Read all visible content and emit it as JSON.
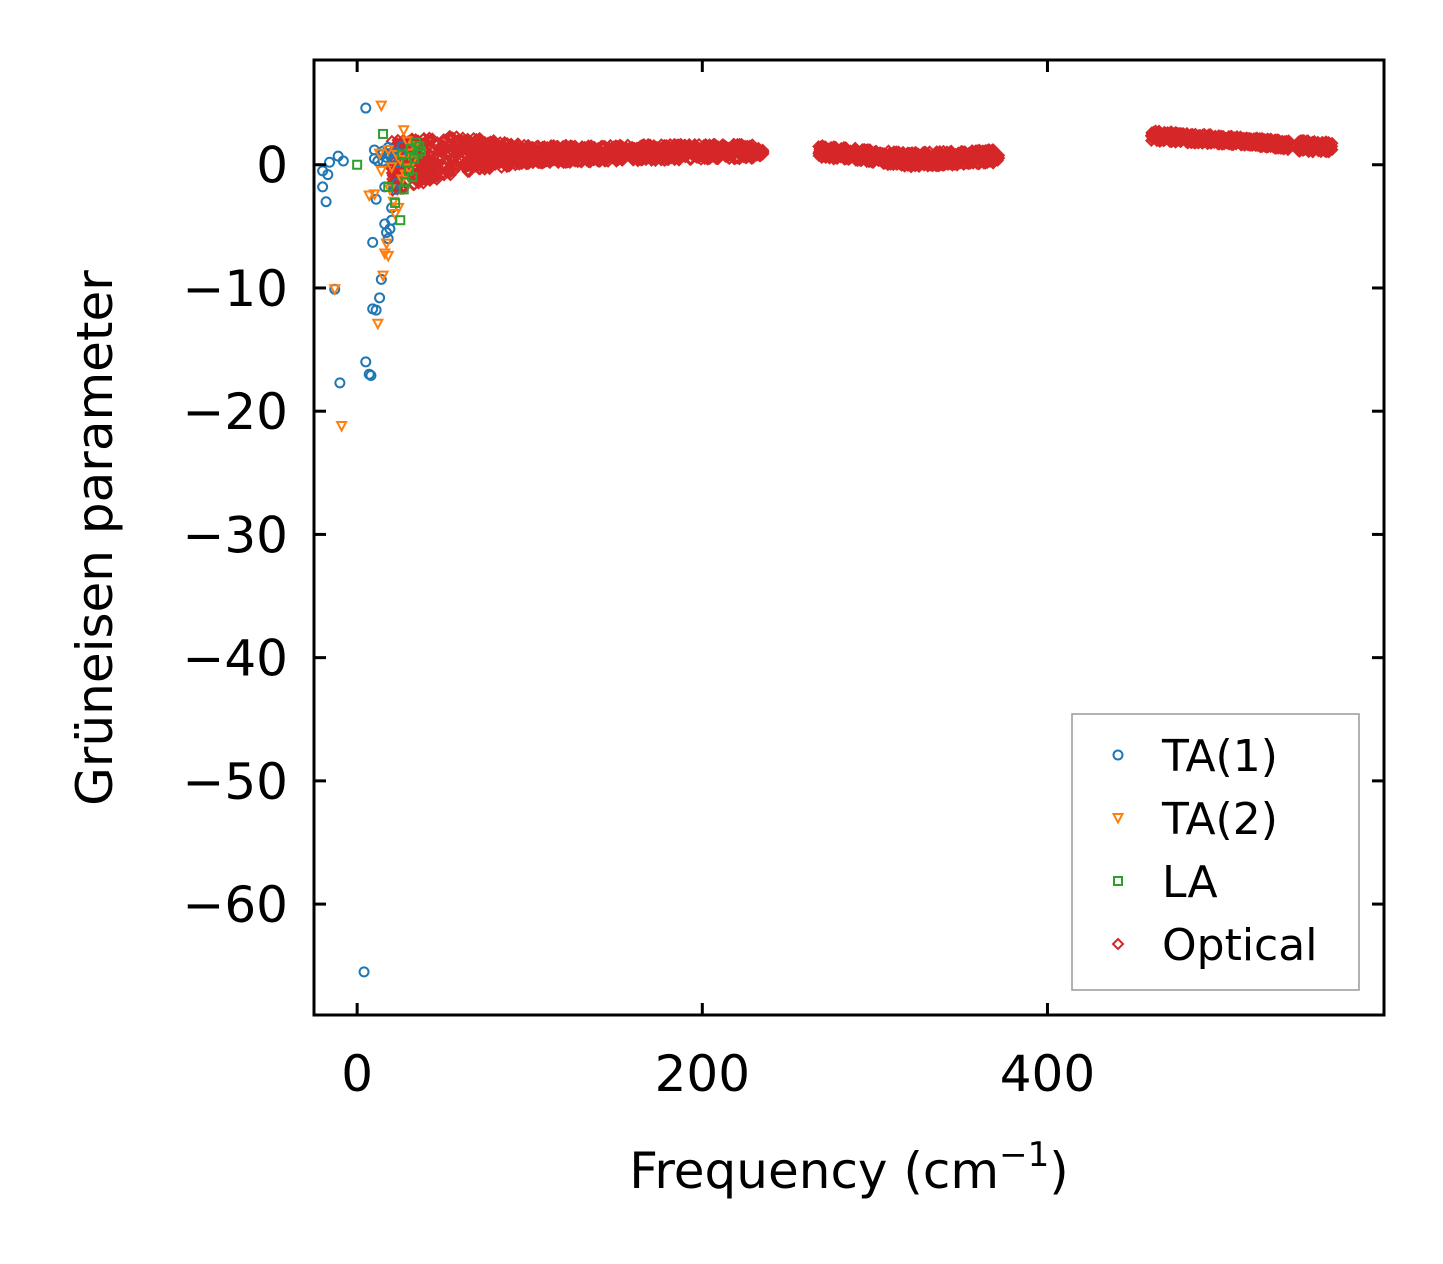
{
  "chart_data": {
    "type": "scatter",
    "title": "",
    "xlabel": "Frequency (cm",
    "xlabel_sup": "−1",
    "xlabel_close": ")",
    "ylabel": "Grüneisen parameter",
    "xlim": [
      -25,
      595
    ],
    "ylim": [
      -69,
      8.5
    ],
    "xticks": [
      0,
      200,
      400
    ],
    "xtick_labels": [
      "0",
      "200",
      "400"
    ],
    "yticks": [
      0,
      -10,
      -20,
      -30,
      -40,
      -50,
      -60
    ],
    "ytick_labels": [
      "0",
      "−10",
      "−20",
      "−30",
      "−40",
      "−50",
      "−60"
    ],
    "grid": false,
    "legend_position": "lower-right",
    "series": [
      {
        "name": "TA(1)",
        "marker": "circle",
        "color": "#1f77b4",
        "points": [
          [
            -20,
            -0.5
          ],
          [
            -20,
            -1.8
          ],
          [
            -18,
            -3
          ],
          [
            -17,
            -0.8
          ],
          [
            -16,
            0.2
          ],
          [
            -13,
            -10.1
          ],
          [
            -11,
            0.7
          ],
          [
            -10,
            -17.7
          ],
          [
            -8,
            0.3
          ],
          [
            5,
            4.6
          ],
          [
            5,
            -16
          ],
          [
            7,
            -17
          ],
          [
            8,
            -17.1
          ],
          [
            9,
            -11.7
          ],
          [
            9,
            -6.3
          ],
          [
            10,
            1.2
          ],
          [
            10,
            0.5
          ],
          [
            11,
            -11.8
          ],
          [
            11,
            -2.8
          ],
          [
            12,
            0.3
          ],
          [
            13,
            -10.8
          ],
          [
            14,
            -9.3
          ],
          [
            14,
            0.8
          ],
          [
            15,
            1.1
          ],
          [
            15,
            0.3
          ],
          [
            16,
            -4.8
          ],
          [
            16,
            -1.8
          ],
          [
            17,
            -5.5
          ],
          [
            17,
            0.6
          ],
          [
            18,
            1.4
          ],
          [
            18,
            -6
          ],
          [
            19,
            -5.2
          ],
          [
            19,
            0.9
          ],
          [
            20,
            -4.5
          ],
          [
            20,
            -3.5
          ],
          [
            21,
            0.5
          ],
          [
            22,
            -2
          ],
          [
            22,
            1
          ],
          [
            23,
            -1.5
          ],
          [
            24,
            0.2
          ],
          [
            25,
            0.9
          ],
          [
            26,
            1.5
          ],
          [
            4,
            -65.5
          ]
        ]
      },
      {
        "name": "TA(2)",
        "marker": "triangle-down",
        "color": "#ff7f0e",
        "points": [
          [
            -13,
            -10.1
          ],
          [
            -9,
            -21.2
          ],
          [
            7,
            -2.5
          ],
          [
            10,
            -2.4
          ],
          [
            12,
            -12.9
          ],
          [
            13,
            0.9
          ],
          [
            14,
            -0.5
          ],
          [
            14,
            4.8
          ],
          [
            15,
            -9
          ],
          [
            16,
            -7.2
          ],
          [
            17,
            -6.4
          ],
          [
            18,
            -7.4
          ],
          [
            18,
            1.2
          ],
          [
            19,
            -2
          ],
          [
            20,
            -0.2
          ],
          [
            21,
            -3
          ],
          [
            22,
            -4
          ],
          [
            23,
            0.8
          ],
          [
            24,
            -3.5
          ],
          [
            25,
            0.4
          ],
          [
            26,
            -1.2
          ],
          [
            27,
            2.8
          ],
          [
            28,
            -0.8
          ],
          [
            29,
            1.9
          ],
          [
            30,
            -0.3
          ],
          [
            31,
            0.9
          ],
          [
            32,
            0.3
          ],
          [
            33,
            1.5
          ]
        ]
      },
      {
        "name": "LA",
        "marker": "square",
        "color": "#2ca02c",
        "points": [
          [
            0,
            0
          ],
          [
            15,
            2.5
          ],
          [
            18,
            -1.8
          ],
          [
            22,
            -3.1
          ],
          [
            25,
            -4.5
          ],
          [
            26,
            0.8
          ],
          [
            27,
            -2
          ],
          [
            28,
            -1.4
          ],
          [
            29,
            0.2
          ],
          [
            30,
            -0.5
          ],
          [
            31,
            1.3
          ],
          [
            32,
            -1
          ],
          [
            33,
            0.5
          ],
          [
            34,
            1.8
          ],
          [
            35,
            0.9
          ],
          [
            36,
            1.5
          ],
          [
            37,
            1.1
          ]
        ]
      },
      {
        "name": "Optical",
        "marker": "diamond",
        "color": "#d62728",
        "points": [],
        "bands": [
          {
            "x_start": 20,
            "x_end": 60,
            "y_upper_start": 2.0,
            "y_upper_end": 2.4,
            "y_lower_start": -2.2,
            "y_lower_end": -0.7
          },
          {
            "x_start": 60,
            "x_end": 100,
            "y_upper_start": 2.4,
            "y_upper_end": 1.6,
            "y_lower_start": -0.7,
            "y_lower_end": 0.1
          },
          {
            "x_start": 100,
            "x_end": 230,
            "y_upper_start": 1.6,
            "y_upper_end": 1.7,
            "y_lower_start": 0.1,
            "y_lower_end": 0.5
          },
          {
            "x_start": 230,
            "x_end": 236,
            "y_upper_start": 1.5,
            "y_upper_end": 1.2,
            "y_lower_start": 0.6,
            "y_lower_end": 0.7
          },
          {
            "x_start": 267,
            "x_end": 320,
            "y_upper_start": 1.6,
            "y_upper_end": 1.0,
            "y_lower_start": 0.6,
            "y_lower_end": -0.2
          },
          {
            "x_start": 320,
            "x_end": 372,
            "y_upper_start": 1.0,
            "y_upper_end": 1.3,
            "y_lower_start": -0.2,
            "y_lower_end": 0.1
          },
          {
            "x_start": 460,
            "x_end": 520,
            "y_upper_start": 2.8,
            "y_upper_end": 2.2,
            "y_lower_start": 1.9,
            "y_lower_end": 1.5
          },
          {
            "x_start": 520,
            "x_end": 540,
            "y_upper_start": 2.2,
            "y_upper_end": 2.0,
            "y_lower_start": 1.5,
            "y_lower_end": 1.2
          },
          {
            "x_start": 545,
            "x_end": 565,
            "y_upper_start": 2.0,
            "y_upper_end": 1.9,
            "y_lower_start": 1.0,
            "y_lower_end": 1.0
          }
        ]
      }
    ]
  }
}
